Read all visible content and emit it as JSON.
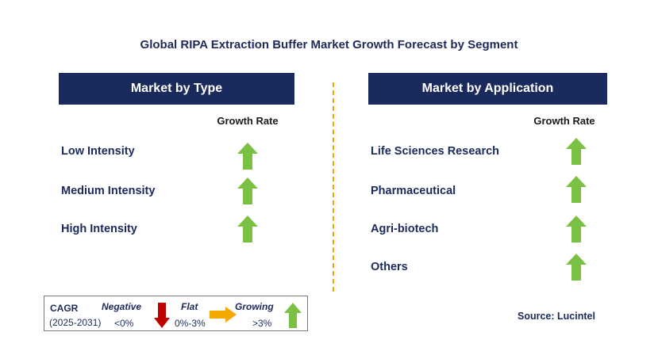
{
  "title": "Global RIPA Extraction Buffer Market Growth Forecast by Segment",
  "left_panel": {
    "header": "Market by Type",
    "column_header": "Growth Rate",
    "rows": [
      {
        "label": "Low Intensity",
        "trend": "growing"
      },
      {
        "label": "Medium Intensity",
        "trend": "growing"
      },
      {
        "label": "High Intensity",
        "trend": "growing"
      }
    ]
  },
  "right_panel": {
    "header": "Market by Application",
    "column_header": "Growth Rate",
    "rows": [
      {
        "label": "Life Sciences Research",
        "trend": "growing"
      },
      {
        "label": "Pharmaceutical",
        "trend": "growing"
      },
      {
        "label": "Agri-biotech",
        "trend": "growing"
      },
      {
        "label": "Others",
        "trend": "growing"
      }
    ]
  },
  "legend": {
    "cagr_label": "CAGR",
    "period": "(2025-2031)",
    "negative_label": "Negative",
    "negative_value": "<0%",
    "flat_label": "Flat",
    "flat_value": "0%-3%",
    "growing_label": "Growing",
    "growing_value": ">3%"
  },
  "source": "Source: Lucintel",
  "colors": {
    "header_bg": "#1b2a5c",
    "growing_arrow": "#7ac143",
    "negative_arrow": "#c00000",
    "flat_arrow": "#f5a800",
    "divider": "#f0a500"
  }
}
